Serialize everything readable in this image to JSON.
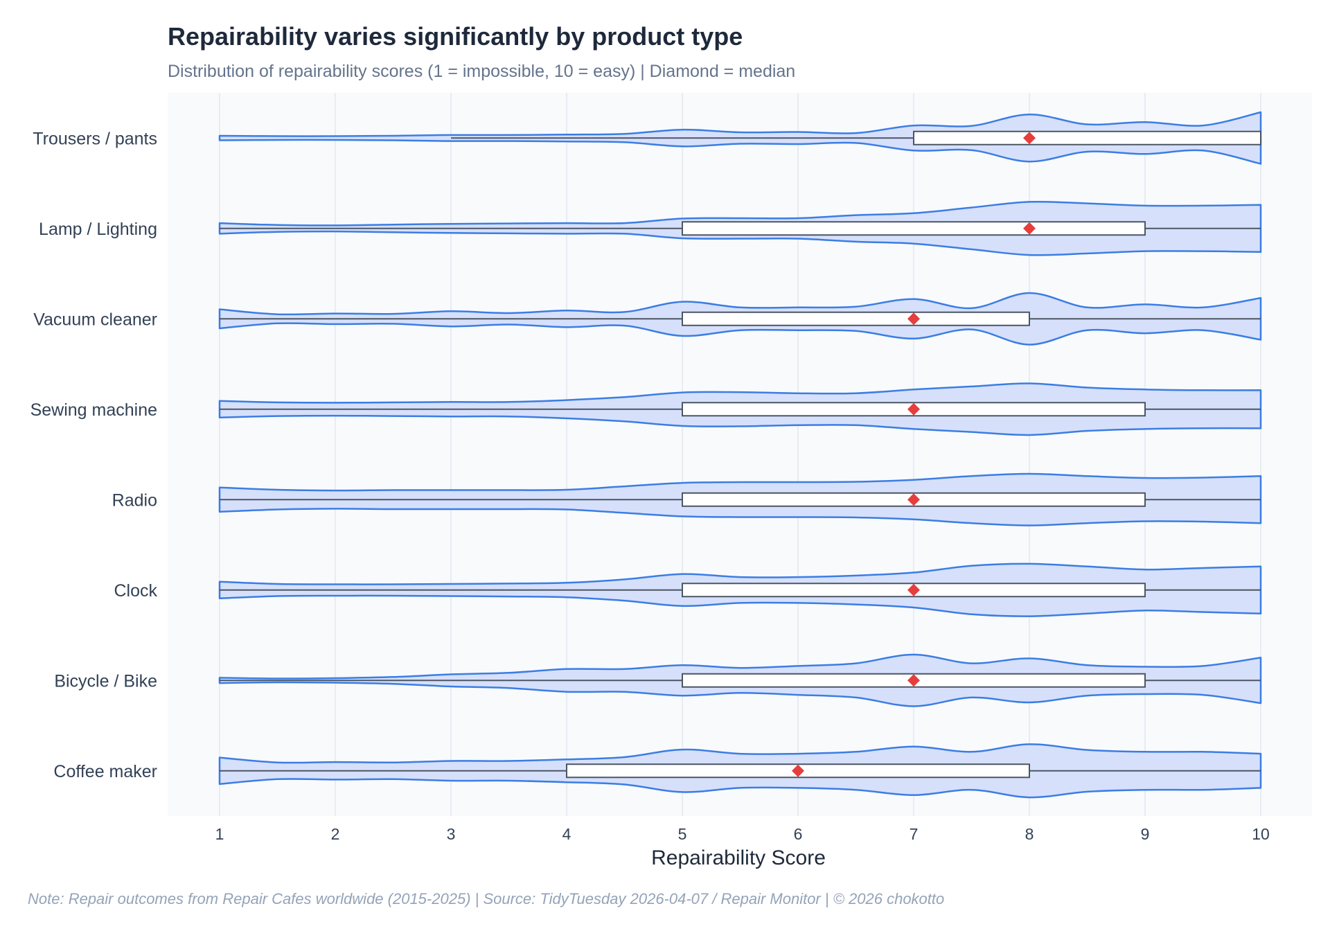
{
  "chart_data": {
    "type": "violin",
    "title": "Repairability varies significantly by product type",
    "subtitle": "Distribution of repairability scores (1 = impossible, 10 = easy) | Diamond = median",
    "xlabel": "Repairability Score",
    "ylabel": "",
    "xlim": [
      1,
      10
    ],
    "x_ticks": [
      "1",
      "2",
      "3",
      "4",
      "5",
      "6",
      "7",
      "8",
      "9",
      "10"
    ],
    "grid": true,
    "note": "Note: Repair outcomes from Repair Cafes worldwide (2015-2025)  |  Source: TidyTuesday 2026-04-07 / Repair Monitor  |  © 2026 chokotto",
    "colors": {
      "violin_fill": "#d6e0fb",
      "violin_line": "#3b7de3",
      "box_fill": "#ffffff",
      "box_line": "#4b5563",
      "median": "#e53e3e",
      "plot_bg": "#f8fafc",
      "grid": "#e2e8f0"
    },
    "series": [
      {
        "name": "Trousers / pants",
        "box": {
          "whisker_low": 3,
          "q1": 7,
          "median": 8,
          "q3": 10,
          "whisker_high": 10
        },
        "density": [
          [
            1,
            0.06
          ],
          [
            1.5,
            0.05
          ],
          [
            2,
            0.05
          ],
          [
            2.5,
            0.06
          ],
          [
            3,
            0.08
          ],
          [
            3.5,
            0.08
          ],
          [
            4,
            0.09
          ],
          [
            4.5,
            0.11
          ],
          [
            5,
            0.22
          ],
          [
            5.5,
            0.15
          ],
          [
            6,
            0.16
          ],
          [
            6.5,
            0.13
          ],
          [
            7,
            0.33
          ],
          [
            7.5,
            0.32
          ],
          [
            8,
            0.62
          ],
          [
            8.5,
            0.36
          ],
          [
            9,
            0.42
          ],
          [
            9.5,
            0.33
          ],
          [
            10,
            0.68
          ]
        ]
      },
      {
        "name": "Lamp / Lighting",
        "box": {
          "whisker_low": 1,
          "q1": 5,
          "median": 8,
          "q3": 9,
          "whisker_high": 10
        },
        "density": [
          [
            1,
            0.14
          ],
          [
            1.5,
            0.09
          ],
          [
            2,
            0.08
          ],
          [
            2.5,
            0.1
          ],
          [
            3,
            0.12
          ],
          [
            3.5,
            0.13
          ],
          [
            4,
            0.14
          ],
          [
            4.5,
            0.14
          ],
          [
            5,
            0.26
          ],
          [
            5.5,
            0.27
          ],
          [
            6,
            0.27
          ],
          [
            6.5,
            0.35
          ],
          [
            7,
            0.4
          ],
          [
            7.5,
            0.55
          ],
          [
            8,
            0.7
          ],
          [
            8.5,
            0.66
          ],
          [
            9,
            0.6
          ],
          [
            9.5,
            0.6
          ],
          [
            10,
            0.62
          ]
        ]
      },
      {
        "name": "Vacuum cleaner",
        "box": {
          "whisker_low": 1,
          "q1": 5,
          "median": 7,
          "q3": 8,
          "whisker_high": 10
        },
        "density": [
          [
            1,
            0.25
          ],
          [
            1.5,
            0.12
          ],
          [
            2,
            0.14
          ],
          [
            2.5,
            0.13
          ],
          [
            3,
            0.2
          ],
          [
            3.5,
            0.15
          ],
          [
            4,
            0.22
          ],
          [
            4.5,
            0.18
          ],
          [
            5,
            0.45
          ],
          [
            5.5,
            0.3
          ],
          [
            6,
            0.3
          ],
          [
            6.5,
            0.32
          ],
          [
            7,
            0.52
          ],
          [
            7.5,
            0.28
          ],
          [
            8,
            0.68
          ],
          [
            8.5,
            0.3
          ],
          [
            9,
            0.38
          ],
          [
            9.5,
            0.3
          ],
          [
            10,
            0.55
          ]
        ]
      },
      {
        "name": "Sewing machine",
        "box": {
          "whisker_low": 1,
          "q1": 5,
          "median": 7,
          "q3": 9,
          "whisker_high": 10
        },
        "density": [
          [
            1,
            0.22
          ],
          [
            1.5,
            0.18
          ],
          [
            2,
            0.17
          ],
          [
            2.5,
            0.18
          ],
          [
            3,
            0.19
          ],
          [
            3.5,
            0.19
          ],
          [
            4,
            0.24
          ],
          [
            4.5,
            0.32
          ],
          [
            5,
            0.44
          ],
          [
            5.5,
            0.45
          ],
          [
            6,
            0.42
          ],
          [
            6.5,
            0.42
          ],
          [
            7,
            0.52
          ],
          [
            7.5,
            0.6
          ],
          [
            8,
            0.68
          ],
          [
            8.5,
            0.57
          ],
          [
            9,
            0.52
          ],
          [
            9.5,
            0.5
          ],
          [
            10,
            0.5
          ]
        ]
      },
      {
        "name": "Radio",
        "box": {
          "whisker_low": 1,
          "q1": 5,
          "median": 7,
          "q3": 9,
          "whisker_high": 10
        },
        "density": [
          [
            1,
            0.32
          ],
          [
            1.5,
            0.26
          ],
          [
            2,
            0.24
          ],
          [
            2.5,
            0.25
          ],
          [
            3,
            0.25
          ],
          [
            3.5,
            0.25
          ],
          [
            4,
            0.26
          ],
          [
            4.5,
            0.35
          ],
          [
            5,
            0.44
          ],
          [
            5.5,
            0.46
          ],
          [
            6,
            0.46
          ],
          [
            6.5,
            0.47
          ],
          [
            7,
            0.52
          ],
          [
            7.5,
            0.62
          ],
          [
            8,
            0.68
          ],
          [
            8.5,
            0.62
          ],
          [
            9,
            0.57
          ],
          [
            9.5,
            0.58
          ],
          [
            10,
            0.62
          ]
        ]
      },
      {
        "name": "Clock",
        "box": {
          "whisker_low": 1,
          "q1": 5,
          "median": 7,
          "q3": 9,
          "whisker_high": 10
        },
        "density": [
          [
            1,
            0.22
          ],
          [
            1.5,
            0.16
          ],
          [
            2,
            0.15
          ],
          [
            2.5,
            0.15
          ],
          [
            3,
            0.16
          ],
          [
            3.5,
            0.17
          ],
          [
            4,
            0.19
          ],
          [
            4.5,
            0.28
          ],
          [
            5,
            0.42
          ],
          [
            5.5,
            0.34
          ],
          [
            6,
            0.34
          ],
          [
            6.5,
            0.38
          ],
          [
            7,
            0.46
          ],
          [
            7.5,
            0.64
          ],
          [
            8,
            0.69
          ],
          [
            8.5,
            0.62
          ],
          [
            9,
            0.54
          ],
          [
            9.5,
            0.58
          ],
          [
            10,
            0.62
          ]
        ]
      },
      {
        "name": "Bicycle / Bike",
        "box": {
          "whisker_low": 1,
          "q1": 5,
          "median": 7,
          "q3": 9,
          "whisker_high": 10
        },
        "density": [
          [
            1,
            0.07
          ],
          [
            1.5,
            0.05
          ],
          [
            2,
            0.06
          ],
          [
            2.5,
            0.09
          ],
          [
            3,
            0.16
          ],
          [
            3.5,
            0.2
          ],
          [
            4,
            0.3
          ],
          [
            4.5,
            0.3
          ],
          [
            5,
            0.4
          ],
          [
            5.5,
            0.33
          ],
          [
            6,
            0.38
          ],
          [
            6.5,
            0.45
          ],
          [
            7,
            0.68
          ],
          [
            7.5,
            0.45
          ],
          [
            8,
            0.58
          ],
          [
            8.5,
            0.4
          ],
          [
            9,
            0.36
          ],
          [
            9.5,
            0.38
          ],
          [
            10,
            0.6
          ]
        ]
      },
      {
        "name": "Coffee maker",
        "box": {
          "whisker_low": 1,
          "q1": 4,
          "median": 6,
          "q3": 8,
          "whisker_high": 10
        },
        "density": [
          [
            1,
            0.35
          ],
          [
            1.5,
            0.22
          ],
          [
            2,
            0.23
          ],
          [
            2.5,
            0.22
          ],
          [
            3,
            0.26
          ],
          [
            3.5,
            0.26
          ],
          [
            4,
            0.3
          ],
          [
            4.5,
            0.36
          ],
          [
            5,
            0.56
          ],
          [
            5.5,
            0.45
          ],
          [
            6,
            0.45
          ],
          [
            6.5,
            0.5
          ],
          [
            7,
            0.64
          ],
          [
            7.5,
            0.5
          ],
          [
            8,
            0.7
          ],
          [
            8.5,
            0.55
          ],
          [
            9,
            0.5
          ],
          [
            9.5,
            0.5
          ],
          [
            10,
            0.45
          ]
        ]
      }
    ]
  }
}
